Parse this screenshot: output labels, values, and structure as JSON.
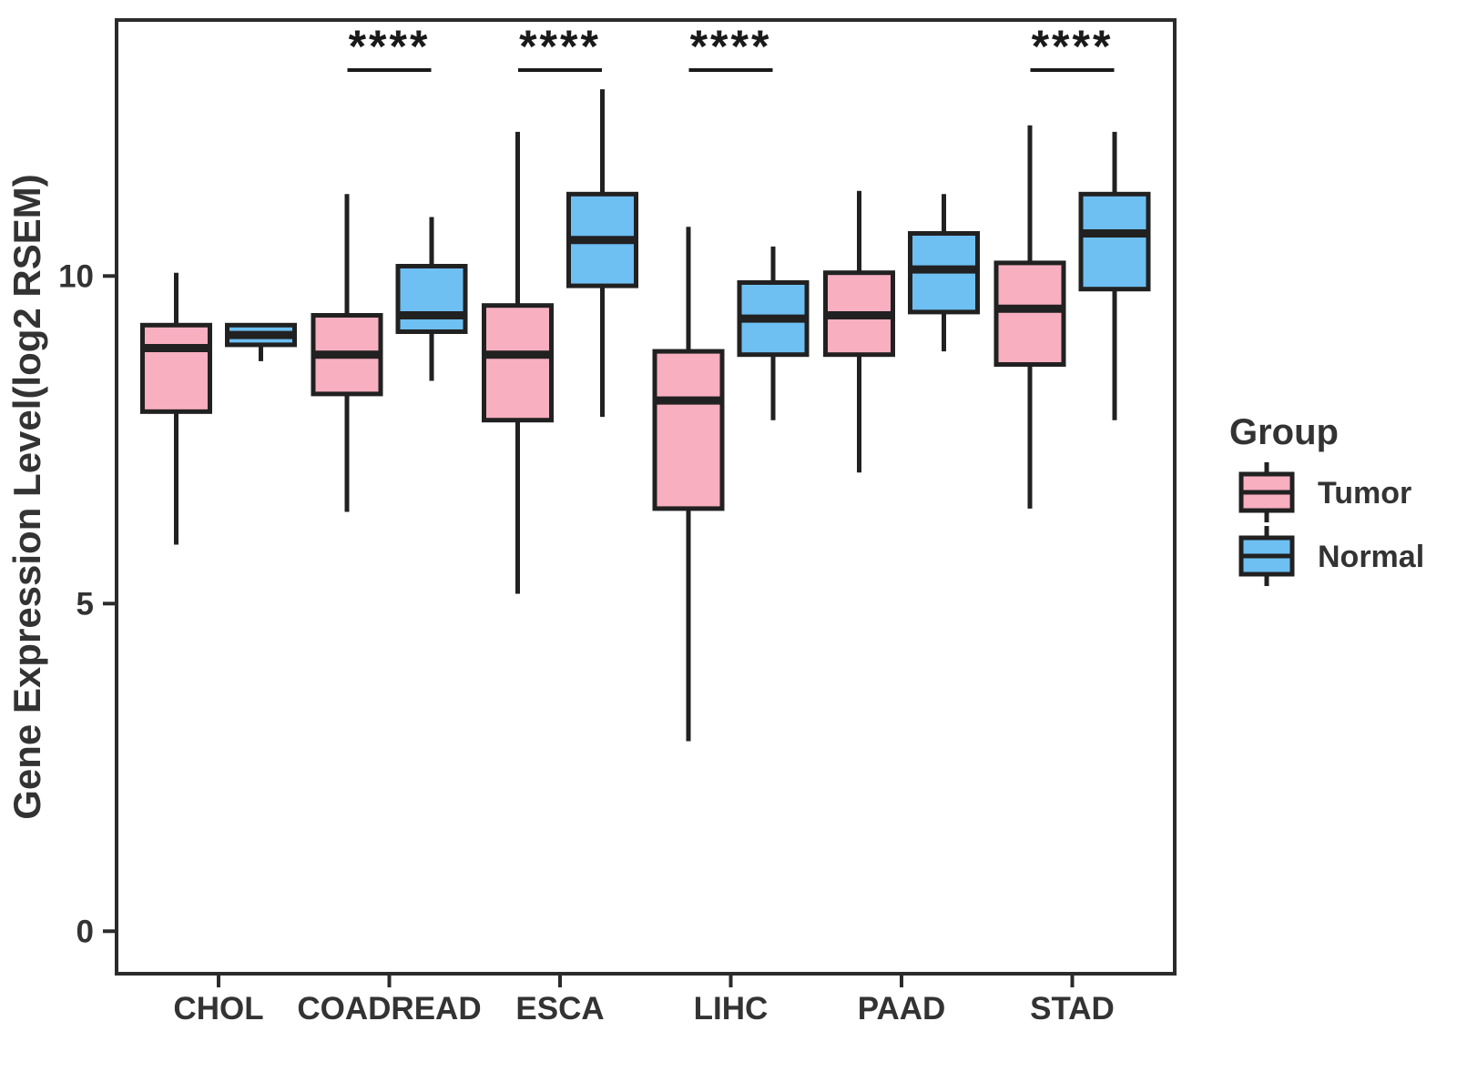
{
  "chart_data": {
    "type": "boxplot",
    "title": "",
    "xlabel": "",
    "ylabel": "Gene Expression Level(log2 RSEM)",
    "yticks": [
      0,
      5,
      10
    ],
    "ylim": [
      -0.65,
      13.9
    ],
    "grid": false,
    "categories": [
      "CHOL",
      "COADREAD",
      "ESCA",
      "LIHC",
      "PAAD",
      "STAD"
    ],
    "significance": [
      "",
      "****",
      "****",
      "****",
      "",
      "****"
    ],
    "legend": {
      "title": "Group",
      "position": "right"
    },
    "colors": {
      "tumor_fill": "#F8AFC0",
      "normal_fill": "#6EBFF2",
      "stroke": "#212121",
      "panel_border": "#2b2b2b",
      "text": "#333333"
    },
    "series": [
      {
        "name": "Tumor",
        "color": "#F8AFC0",
        "boxes": [
          {
            "category": "CHOL",
            "whisker_low": 5.9,
            "q1": 7.93,
            "median": 8.9,
            "q3": 9.25,
            "whisker_high": 10.05
          },
          {
            "category": "COADREAD",
            "whisker_low": 6.4,
            "q1": 8.2,
            "median": 8.8,
            "q3": 9.4,
            "whisker_high": 11.25
          },
          {
            "category": "ESCA",
            "whisker_low": 5.15,
            "q1": 7.8,
            "median": 8.8,
            "q3": 9.55,
            "whisker_high": 12.2
          },
          {
            "category": "LIHC",
            "whisker_low": 2.9,
            "q1": 6.45,
            "median": 8.1,
            "q3": 8.85,
            "whisker_high": 10.75
          },
          {
            "category": "PAAD",
            "whisker_low": 7.0,
            "q1": 8.8,
            "median": 9.4,
            "q3": 10.05,
            "whisker_high": 11.3
          },
          {
            "category": "STAD",
            "whisker_low": 6.45,
            "q1": 8.65,
            "median": 9.5,
            "q3": 10.2,
            "whisker_high": 12.3
          }
        ]
      },
      {
        "name": "Normal",
        "color": "#6EBFF2",
        "boxes": [
          {
            "category": "CHOL",
            "whisker_low": 8.7,
            "q1": 8.95,
            "median": 9.1,
            "q3": 9.25,
            "whisker_high": 9.25
          },
          {
            "category": "COADREAD",
            "whisker_low": 8.4,
            "q1": 9.15,
            "median": 9.4,
            "q3": 10.15,
            "whisker_high": 10.9
          },
          {
            "category": "ESCA",
            "whisker_low": 7.85,
            "q1": 9.85,
            "median": 10.55,
            "q3": 11.25,
            "whisker_high": 12.85
          },
          {
            "category": "LIHC",
            "whisker_low": 7.8,
            "q1": 8.8,
            "median": 9.35,
            "q3": 9.9,
            "whisker_high": 10.45
          },
          {
            "category": "PAAD",
            "whisker_low": 8.85,
            "q1": 9.45,
            "median": 10.1,
            "q3": 10.65,
            "whisker_high": 11.25
          },
          {
            "category": "STAD",
            "whisker_low": 7.8,
            "q1": 9.8,
            "median": 10.65,
            "q3": 11.25,
            "whisker_high": 12.2
          }
        ]
      }
    ]
  }
}
